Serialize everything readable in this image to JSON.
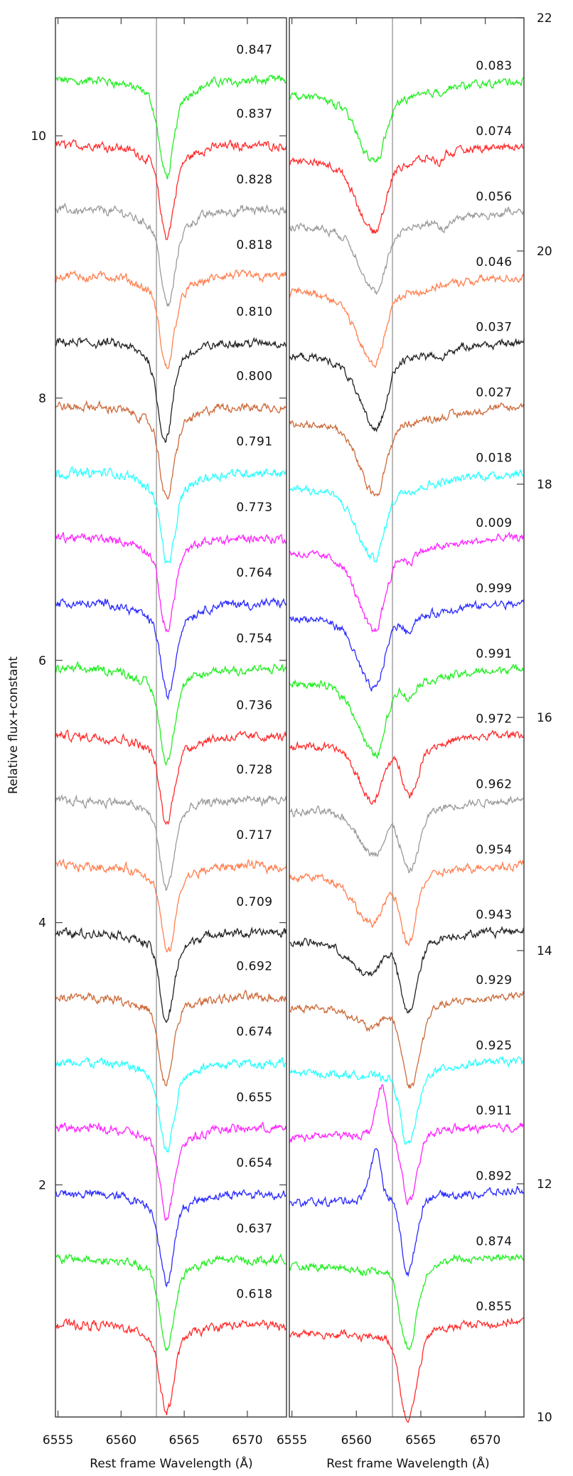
{
  "chart_data": {
    "type": "line",
    "ylabel": "Relative flux+constant",
    "colors": [
      "#22ee22",
      "#ff2a2a",
      "#9a9a9a",
      "#ff7f4f",
      "#222222",
      "#cc6a3a",
      "#22ffff",
      "#ff22ff",
      "#2a2aff"
    ],
    "reference_wavelength": 6562.8,
    "panels": [
      {
        "name": "left",
        "xlabel": "Rest frame Wavelength (Å)",
        "xlim": [
          6554.8,
          6573.1
        ],
        "xticks": [
          6555,
          6560,
          6565,
          6570
        ],
        "ylim": [
          0.23,
          10.9
        ],
        "yticks": [
          2,
          4,
          6,
          8,
          10
        ],
        "ytick_side": "left",
        "continuum_slope": 0.0,
        "series": [
          {
            "label": "0.847",
            "offset": 10.42,
            "lines": [
              [
                6563.6,
                0.58,
                0.55,
                0.55
              ],
              [
                6563.6,
                0.15,
                1.8,
                1.8
              ]
            ]
          },
          {
            "label": "0.837",
            "offset": 9.93,
            "lines": [
              [
                6563.6,
                0.55,
                0.5,
                0.55
              ],
              [
                6563.6,
                0.15,
                1.8,
                1.8
              ]
            ]
          },
          {
            "label": "0.828",
            "offset": 9.43,
            "lines": [
              [
                6563.7,
                0.58,
                0.5,
                0.55
              ],
              [
                6563.7,
                0.15,
                1.8,
                1.8
              ]
            ]
          },
          {
            "label": "0.818",
            "offset": 8.93,
            "lines": [
              [
                6563.6,
                0.55,
                0.5,
                0.55
              ],
              [
                6563.6,
                0.15,
                1.8,
                1.8
              ]
            ]
          },
          {
            "label": "0.810",
            "offset": 8.42,
            "lines": [
              [
                6563.5,
                0.58,
                0.55,
                0.55
              ],
              [
                6563.5,
                0.15,
                1.8,
                1.8
              ]
            ]
          },
          {
            "label": "0.800",
            "offset": 7.93,
            "lines": [
              [
                6563.6,
                0.55,
                0.5,
                0.55
              ],
              [
                6563.6,
                0.15,
                1.8,
                1.8
              ]
            ]
          },
          {
            "label": "0.791",
            "offset": 7.43,
            "lines": [
              [
                6563.7,
                0.55,
                0.5,
                0.55
              ],
              [
                6563.7,
                0.15,
                1.8,
                1.8
              ]
            ]
          },
          {
            "label": "0.773",
            "offset": 6.93,
            "lines": [
              [
                6563.6,
                0.55,
                0.5,
                0.55
              ],
              [
                6563.6,
                0.15,
                1.8,
                1.8
              ]
            ]
          },
          {
            "label": "0.764",
            "offset": 6.43,
            "lines": [
              [
                6563.7,
                0.55,
                0.5,
                0.55
              ],
              [
                6563.7,
                0.15,
                1.8,
                1.8
              ]
            ]
          },
          {
            "label": "0.754",
            "offset": 5.93,
            "lines": [
              [
                6563.6,
                0.55,
                0.5,
                0.55
              ],
              [
                6563.6,
                0.15,
                1.8,
                1.8
              ]
            ]
          },
          {
            "label": "0.736",
            "offset": 5.42,
            "lines": [
              [
                6563.6,
                0.55,
                0.5,
                0.55
              ],
              [
                6563.6,
                0.12,
                1.8,
                1.8
              ]
            ]
          },
          {
            "label": "0.728",
            "offset": 4.93,
            "lines": [
              [
                6563.6,
                0.55,
                0.5,
                0.55
              ],
              [
                6563.6,
                0.12,
                1.8,
                1.8
              ]
            ]
          },
          {
            "label": "0.717",
            "offset": 4.43,
            "lines": [
              [
                6563.7,
                0.55,
                0.5,
                0.55
              ],
              [
                6563.7,
                0.12,
                1.8,
                1.8
              ]
            ]
          },
          {
            "label": "0.709",
            "offset": 3.92,
            "lines": [
              [
                6563.6,
                0.55,
                0.5,
                0.55
              ],
              [
                6563.6,
                0.12,
                1.8,
                1.8
              ]
            ]
          },
          {
            "label": "0.692",
            "offset": 3.43,
            "lines": [
              [
                6563.5,
                0.55,
                0.5,
                0.55
              ],
              [
                6563.5,
                0.12,
                1.8,
                1.8
              ]
            ]
          },
          {
            "label": "0.674",
            "offset": 2.93,
            "lines": [
              [
                6563.6,
                0.55,
                0.5,
                0.55
              ],
              [
                6563.6,
                0.12,
                1.8,
                1.8
              ]
            ]
          },
          {
            "label": "0.655",
            "offset": 2.43,
            "lines": [
              [
                6563.6,
                0.55,
                0.5,
                0.55
              ],
              [
                6563.6,
                0.12,
                1.8,
                1.8
              ]
            ]
          },
          {
            "label": "0.654",
            "offset": 1.93,
            "lines": [
              [
                6563.6,
                0.55,
                0.5,
                0.55
              ],
              [
                6563.6,
                0.12,
                1.8,
                1.8
              ]
            ]
          },
          {
            "label": "0.637",
            "offset": 1.43,
            "lines": [
              [
                6563.6,
                0.55,
                0.5,
                0.55
              ],
              [
                6563.6,
                0.12,
                1.8,
                1.8
              ]
            ]
          },
          {
            "label": "0.618",
            "offset": 0.93,
            "lines": [
              [
                6563.6,
                0.55,
                0.5,
                0.55
              ],
              [
                6563.6,
                0.12,
                1.8,
                1.8
              ]
            ]
          }
        ]
      },
      {
        "name": "right",
        "xlabel": "Rest frame Wavelength (Å)",
        "xlim": [
          6554.8,
          6573.0
        ],
        "xticks": [
          6555,
          6560,
          6565,
          6570
        ],
        "ylim": [
          10,
          22
        ],
        "yticks": [
          10,
          12,
          14,
          16,
          18,
          20,
          22
        ],
        "ytick_side": "right",
        "continuum_slope": 0.006,
        "series": [
          {
            "label": "0.083",
            "offset": 21.35,
            "lines": [
              [
                6561.5,
                0.5,
                1.3,
                0.75
              ],
              [
                6561.5,
                0.12,
                3.5,
                3.5
              ]
            ]
          },
          {
            "label": "0.074",
            "offset": 20.79,
            "lines": [
              [
                6561.4,
                0.55,
                1.2,
                0.75
              ],
              [
                6561.4,
                0.12,
                3.5,
                3.5
              ],
              [
                6566.4,
                0.07,
                0.25,
                0.25
              ]
            ]
          },
          {
            "label": "0.056",
            "offset": 20.23,
            "lines": [
              [
                6561.6,
                0.5,
                1.2,
                0.7
              ],
              [
                6561.6,
                0.12,
                3.5,
                3.5
              ],
              [
                6566.8,
                0.08,
                0.3,
                0.3
              ]
            ]
          },
          {
            "label": "0.046",
            "offset": 19.67,
            "lines": [
              [
                6561.4,
                0.55,
                1.3,
                0.75
              ],
              [
                6561.4,
                0.12,
                3.5,
                3.5
              ]
            ]
          },
          {
            "label": "0.037",
            "offset": 19.11,
            "lines": [
              [
                6561.5,
                0.55,
                1.2,
                0.75
              ],
              [
                6561.5,
                0.12,
                3.5,
                3.5
              ],
              [
                6566.5,
                0.07,
                0.3,
                0.3
              ]
            ]
          },
          {
            "label": "0.027",
            "offset": 18.55,
            "lines": [
              [
                6561.5,
                0.55,
                1.2,
                0.75
              ],
              [
                6561.5,
                0.12,
                3.5,
                3.5
              ]
            ]
          },
          {
            "label": "0.018",
            "offset": 17.99,
            "lines": [
              [
                6561.4,
                0.55,
                1.3,
                0.75
              ],
              [
                6561.4,
                0.12,
                3.5,
                3.5
              ]
            ]
          },
          {
            "label": "0.009",
            "offset": 17.43,
            "lines": [
              [
                6561.4,
                0.6,
                1.2,
                0.75
              ],
              [
                6561.4,
                0.12,
                3.5,
                3.5
              ],
              [
                6564.1,
                0.06,
                0.3,
                0.3
              ]
            ]
          },
          {
            "label": "0.999",
            "offset": 16.87,
            "lines": [
              [
                6561.4,
                0.55,
                1.2,
                0.7
              ],
              [
                6561.4,
                0.12,
                3.5,
                3.5
              ],
              [
                6564.0,
                0.1,
                0.3,
                0.3
              ]
            ]
          },
          {
            "label": "0.991",
            "offset": 16.31,
            "lines": [
              [
                6561.5,
                0.55,
                1.2,
                0.7
              ],
              [
                6561.5,
                0.12,
                3.5,
                3.5
              ],
              [
                6564.1,
                0.12,
                0.35,
                0.35
              ]
            ]
          },
          {
            "label": "0.972",
            "offset": 15.75,
            "lines": [
              [
                6561.3,
                0.42,
                1.1,
                0.7
              ],
              [
                6564.2,
                0.38,
                0.6,
                0.6
              ],
              [
                6562.8,
                0.1,
                3.0,
                3.0
              ]
            ]
          },
          {
            "label": "0.962",
            "offset": 15.19,
            "lines": [
              [
                6561.4,
                0.33,
                1.1,
                0.7
              ],
              [
                6564.1,
                0.48,
                0.6,
                0.7
              ],
              [
                6562.8,
                0.1,
                3.0,
                3.0
              ]
            ]
          },
          {
            "label": "0.954",
            "offset": 14.63,
            "lines": [
              [
                6561.2,
                0.38,
                1.3,
                0.8
              ],
              [
                6564.0,
                0.55,
                0.6,
                0.6
              ],
              [
                6562.8,
                0.08,
                3.0,
                3.0
              ]
            ]
          },
          {
            "label": "0.943",
            "offset": 14.07,
            "lines": [
              [
                6561.0,
                0.25,
                1.5,
                0.8
              ],
              [
                6564.0,
                0.58,
                0.6,
                0.7
              ],
              [
                6562.8,
                0.08,
                3.0,
                3.0
              ]
            ]
          },
          {
            "label": "0.929",
            "offset": 13.51,
            "lines": [
              [
                6561.3,
                0.12,
                1.0,
                0.4
              ],
              [
                6564.2,
                0.62,
                0.6,
                0.7
              ],
              [
                6562.8,
                0.12,
                3.0,
                3.0
              ]
            ]
          },
          {
            "label": "0.925",
            "offset": 12.95,
            "lines": [
              [
                6564.0,
                0.6,
                0.55,
                0.7
              ],
              [
                6562.8,
                0.08,
                3.0,
                3.0
              ]
            ]
          },
          {
            "label": "0.911",
            "offset": 12.39,
            "lines": [
              [
                6562.0,
                -0.4,
                0.45,
                0.3
              ],
              [
                6564.1,
                0.6,
                0.55,
                0.65
              ]
            ]
          },
          {
            "label": "0.892",
            "offset": 11.83,
            "lines": [
              [
                6561.6,
                -0.42,
                0.5,
                0.3
              ],
              [
                6564.0,
                0.65,
                0.5,
                0.6
              ]
            ]
          },
          {
            "label": "0.874",
            "offset": 11.27,
            "lines": [
              [
                6564.0,
                0.68,
                0.6,
                0.7
              ],
              [
                6562.5,
                0.06,
                2.5,
                2.5
              ]
            ]
          },
          {
            "label": "0.855",
            "offset": 10.71,
            "lines": [
              [
                6564.0,
                0.72,
                0.6,
                0.7
              ],
              [
                6562.5,
                0.08,
                2.5,
                2.5
              ]
            ]
          }
        ]
      }
    ]
  }
}
